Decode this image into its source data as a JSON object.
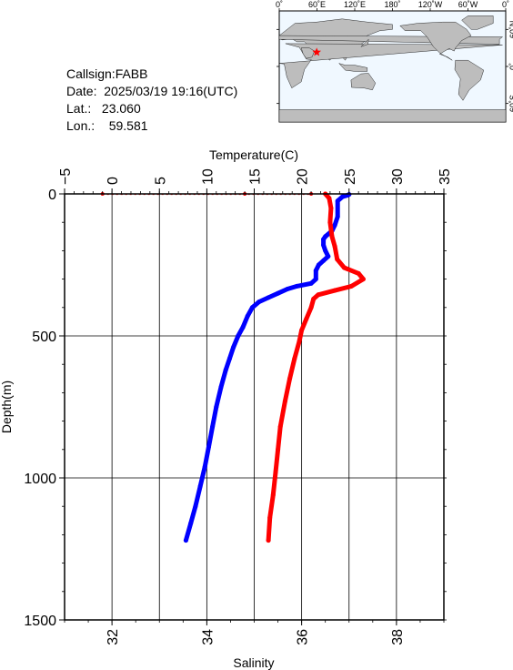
{
  "info": {
    "callsign": "Callsign:FABB",
    "date": "Date:  2025/03/19 19:16(UTC)",
    "lat": "Lat.:   23.060",
    "lon": "Lon.:    59.581"
  },
  "map": {
    "top_labels": [
      "0˚",
      "60˚E",
      "120˚E",
      "180˚",
      "120˚W",
      "60˚W",
      "0˚"
    ],
    "right_labels": [
      "60˚N",
      "0˚",
      "60˚S"
    ],
    "marker": {
      "lon": 59.581,
      "lat": 23.06,
      "color": "#ff0000"
    },
    "ocean_color": "#f0f8ff",
    "land_color": "#bdbdbd"
  },
  "chart_data": {
    "type": "line",
    "ylabel": "Depth(m)",
    "ylim": [
      1500,
      0
    ],
    "yticks": [
      "0",
      "500",
      "1000",
      "1500"
    ],
    "temperature_axis": {
      "label": "Temperature(C)",
      "range": [
        -5,
        35
      ],
      "ticks": [
        "−5",
        "0",
        "5",
        "10",
        "15",
        "20",
        "25",
        "30",
        "35"
      ]
    },
    "salinity_axis": {
      "label": "Salinity",
      "range": [
        31,
        39
      ],
      "ticks": [
        "32",
        "34",
        "36",
        "38"
      ]
    },
    "grid": true,
    "series": [
      {
        "color": "#0000ff",
        "axis": "temperature",
        "points": [
          [
            25.0,
            2
          ],
          [
            24.8,
            5
          ],
          [
            24.3,
            10
          ],
          [
            23.8,
            25
          ],
          [
            23.8,
            80
          ],
          [
            23.5,
            110
          ],
          [
            23.2,
            130
          ],
          [
            22.5,
            150
          ],
          [
            22.3,
            160
          ],
          [
            22.3,
            180
          ],
          [
            22.5,
            200
          ],
          [
            22.8,
            220
          ],
          [
            22.3,
            235
          ],
          [
            21.8,
            250
          ],
          [
            21.5,
            270
          ],
          [
            21.5,
            300
          ],
          [
            21.0,
            315
          ],
          [
            19.5,
            325
          ],
          [
            18.5,
            335
          ],
          [
            17.5,
            350
          ],
          [
            16.5,
            365
          ],
          [
            15.5,
            380
          ],
          [
            14.8,
            400
          ],
          [
            14.3,
            430
          ],
          [
            13.8,
            470
          ],
          [
            13.3,
            500
          ],
          [
            12.8,
            540
          ],
          [
            12.4,
            580
          ],
          [
            12.0,
            620
          ],
          [
            11.5,
            680
          ],
          [
            11.0,
            750
          ],
          [
            10.6,
            820
          ],
          [
            10.2,
            890
          ],
          [
            9.8,
            960
          ],
          [
            9.3,
            1030
          ],
          [
            8.8,
            1100
          ],
          [
            8.3,
            1160
          ],
          [
            7.8,
            1220
          ]
        ]
      },
      {
        "color": "#ff0000",
        "axis": "salinity",
        "points": [
          [
            36.5,
            0
          ],
          [
            36.58,
            15
          ],
          [
            36.62,
            50
          ],
          [
            36.6,
            100
          ],
          [
            36.64,
            150
          ],
          [
            36.7,
            185
          ],
          [
            36.75,
            230
          ],
          [
            36.9,
            260
          ],
          [
            37.2,
            280
          ],
          [
            37.3,
            300
          ],
          [
            37.05,
            325
          ],
          [
            36.7,
            340
          ],
          [
            36.35,
            355
          ],
          [
            36.25,
            370
          ],
          [
            36.2,
            400
          ],
          [
            36.1,
            440
          ],
          [
            36.0,
            480
          ],
          [
            35.95,
            520
          ],
          [
            35.85,
            580
          ],
          [
            35.75,
            650
          ],
          [
            35.65,
            730
          ],
          [
            35.55,
            820
          ],
          [
            35.5,
            900
          ],
          [
            35.45,
            980
          ],
          [
            35.4,
            1060
          ],
          [
            35.33,
            1140
          ],
          [
            35.3,
            1220
          ]
        ],
        "surface_points": [
          [
            31.8,
            0
          ],
          [
            34.8,
            0
          ],
          [
            36.2,
            0
          ]
        ]
      }
    ]
  }
}
